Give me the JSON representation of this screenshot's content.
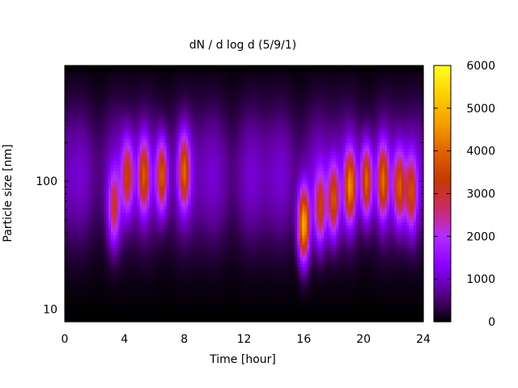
{
  "chart_data": {
    "type": "heatmap",
    "title": "dN / d log d (5/9/1)",
    "xlabel": "Time [hour]",
    "ylabel": "Particle size [nm]",
    "x_range": [
      0,
      24
    ],
    "x_ticks": [
      0,
      4,
      8,
      12,
      16,
      20,
      24
    ],
    "x_tick_labels": [
      "0",
      "4",
      "8",
      "12",
      "16",
      "20",
      "24"
    ],
    "y_scale": "log",
    "y_range": [
      8,
      800
    ],
    "y_ticks": [
      10,
      100
    ],
    "y_tick_labels": [
      "10",
      "100"
    ],
    "colorbar": {
      "range": [
        0,
        6000
      ],
      "ticks": [
        0,
        1000,
        2000,
        3000,
        4000,
        5000,
        6000
      ],
      "tick_labels": [
        "0",
        "1000",
        "2000",
        "3000",
        "4000",
        "5000",
        "6000"
      ],
      "palette": [
        "#000000",
        "#5a0090",
        "#8a00ff",
        "#b22dff",
        "#cc2a63",
        "#c43a00",
        "#e26400",
        "#f5a000",
        "#ffd000",
        "#ffff20"
      ]
    },
    "background_level": 1200,
    "peak_size_nm": 110,
    "features": [
      {
        "time_h": 3.3,
        "size_nm": 60,
        "peak": 3000
      },
      {
        "time_h": 4.2,
        "size_nm": 110,
        "peak": 3300
      },
      {
        "time_h": 5.3,
        "size_nm": 110,
        "peak": 3500
      },
      {
        "time_h": 6.5,
        "size_nm": 110,
        "peak": 3900
      },
      {
        "time_h": 8.0,
        "size_nm": 120,
        "peak": 3700
      },
      {
        "time_h": 16.0,
        "size_nm": 45,
        "peak": 5200
      },
      {
        "time_h": 17.1,
        "size_nm": 60,
        "peak": 3300
      },
      {
        "time_h": 18.0,
        "size_nm": 70,
        "peak": 3700
      },
      {
        "time_h": 19.1,
        "size_nm": 90,
        "peak": 4200
      },
      {
        "time_h": 20.2,
        "size_nm": 100,
        "peak": 4100
      },
      {
        "time_h": 21.3,
        "size_nm": 100,
        "peak": 3800
      },
      {
        "time_h": 22.4,
        "size_nm": 90,
        "peak": 3700
      },
      {
        "time_h": 23.2,
        "size_nm": 80,
        "peak": 3400
      }
    ]
  }
}
